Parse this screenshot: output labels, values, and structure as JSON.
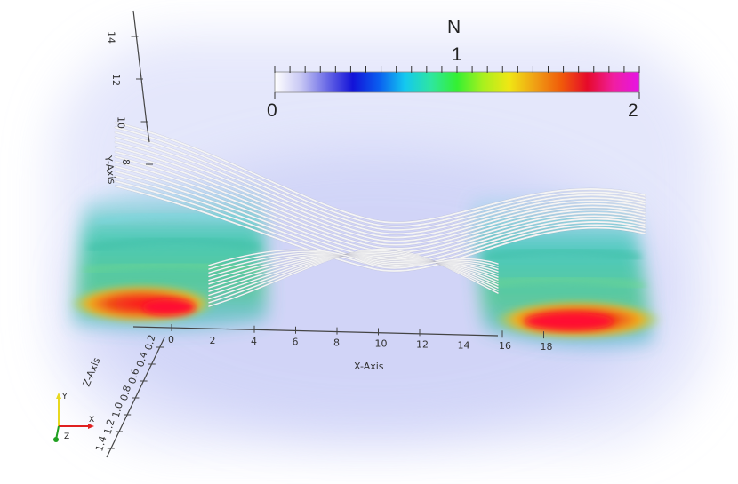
{
  "colorbar": {
    "title": "N",
    "min_label": "0",
    "mid_label": "1",
    "max_label": "2",
    "stops": [
      "#ffffff",
      "#c8c8f4",
      "#6a6ae6",
      "#1212d8",
      "#0a5ef0",
      "#14c8f0",
      "#2ee6a0",
      "#34f032",
      "#a8f01e",
      "#f0e614",
      "#f0a014",
      "#f05a0a",
      "#e60a2a",
      "#f01ea0",
      "#e614e6"
    ]
  },
  "axes": {
    "x_title": "X-Axis",
    "y_title": "Y-Axis",
    "z_title": "Z-Axis",
    "x_ticks": [
      "0",
      "2",
      "4",
      "6",
      "8",
      "10",
      "12",
      "14",
      "16",
      "18"
    ],
    "y_ticks": [
      "8",
      "10",
      "12",
      "14"
    ],
    "z_ticks": [
      "0.2",
      "0.4",
      "0.6",
      "0.8",
      "1.0",
      "1.2",
      "1.4"
    ]
  },
  "orientation_widget": {
    "x": "X",
    "y": "Y",
    "z": "Z"
  },
  "colors": {
    "haze": "#d8dcfa",
    "field_lines": "#f4f4f4",
    "axis_line": "#444444"
  }
}
